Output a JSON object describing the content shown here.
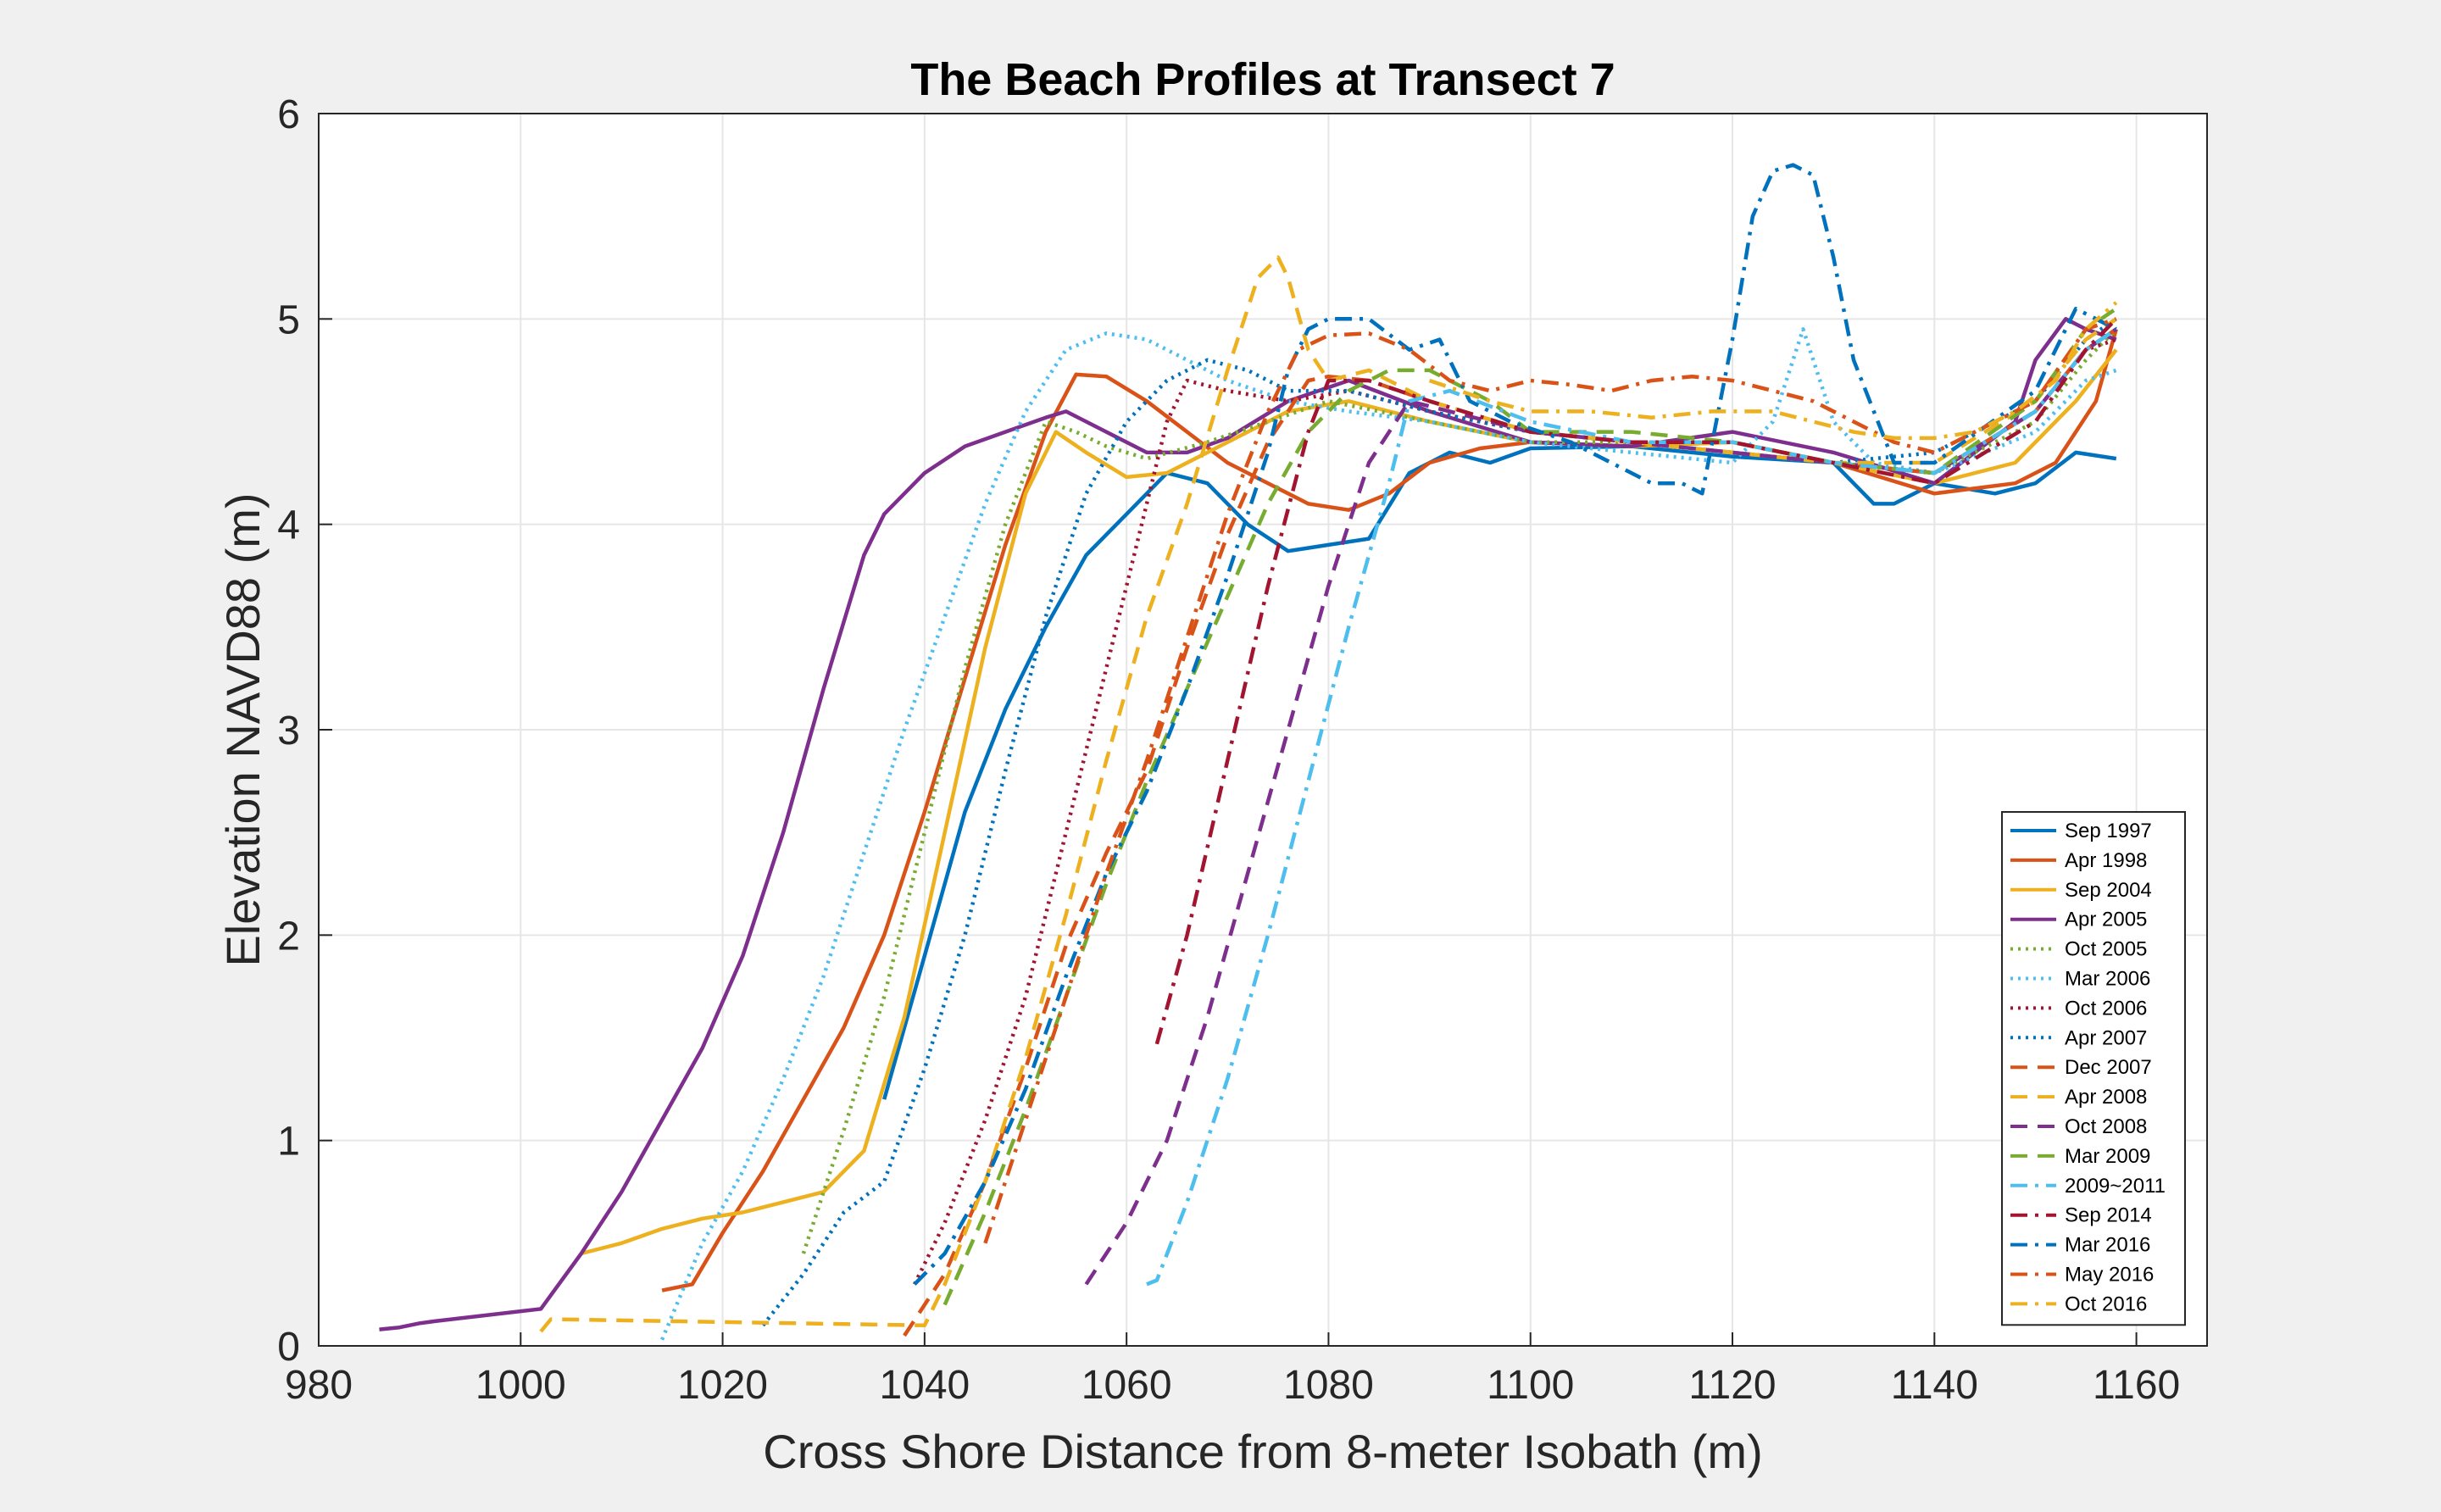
{
  "chart_data": {
    "type": "line",
    "title": "The Beach Profiles at Transect 7",
    "xlabel": "Cross Shore Distance from 8-meter Isobath (m)",
    "ylabel": "Elevation NAVD88 (m)",
    "xlim": [
      980,
      1167
    ],
    "ylim": [
      0,
      6
    ],
    "xticks": [
      "980",
      "1000",
      "1020",
      "1040",
      "1060",
      "1080",
      "1100",
      "1120",
      "1140",
      "1160"
    ],
    "yticks": [
      "0",
      "1",
      "2",
      "3",
      "4",
      "5",
      "6"
    ],
    "grid": true,
    "legend_position": "bottom-right",
    "series": [
      {
        "name": "Sep 1997",
        "color": "#0072BD",
        "dash": "solid",
        "x": [
          1036,
          1040,
          1044,
          1048,
          1052,
          1056,
          1060,
          1064,
          1068,
          1072,
          1076,
          1080,
          1084,
          1088,
          1092,
          1096,
          1100,
          1110,
          1120,
          1130,
          1134,
          1136,
          1140,
          1146,
          1150,
          1154,
          1158
        ],
        "y": [
          1.2,
          1.9,
          2.6,
          3.1,
          3.5,
          3.85,
          4.05,
          4.25,
          4.2,
          4.0,
          3.87,
          3.9,
          3.93,
          4.25,
          4.35,
          4.3,
          4.37,
          4.38,
          4.33,
          4.3,
          4.1,
          4.1,
          4.2,
          4.15,
          4.2,
          4.35,
          4.32
        ]
      },
      {
        "name": "Apr 1998",
        "color": "#D95319",
        "dash": "solid",
        "x": [
          1014,
          1017,
          1020,
          1024,
          1028,
          1032,
          1036,
          1040,
          1044,
          1048,
          1052,
          1055,
          1058,
          1062,
          1066,
          1070,
          1074,
          1078,
          1082,
          1086,
          1090,
          1095,
          1100,
          1110,
          1120,
          1130,
          1140,
          1148,
          1152,
          1156,
          1158
        ],
        "y": [
          0.27,
          0.3,
          0.55,
          0.85,
          1.2,
          1.55,
          2.0,
          2.6,
          3.25,
          3.9,
          4.45,
          4.73,
          4.72,
          4.6,
          4.45,
          4.3,
          4.2,
          4.1,
          4.07,
          4.15,
          4.3,
          4.37,
          4.4,
          4.38,
          4.4,
          4.3,
          4.15,
          4.2,
          4.3,
          4.6,
          4.95
        ]
      },
      {
        "name": "Sep 2004",
        "color": "#EDB120",
        "dash": "solid",
        "x": [
          1006,
          1010,
          1014,
          1018,
          1022,
          1026,
          1030,
          1034,
          1038,
          1042,
          1046,
          1050,
          1053,
          1056,
          1060,
          1064,
          1070,
          1076,
          1082,
          1090,
          1100,
          1110,
          1120,
          1130,
          1140,
          1148,
          1154,
          1158
        ],
        "y": [
          0.45,
          0.5,
          0.57,
          0.62,
          0.65,
          0.7,
          0.75,
          0.95,
          1.6,
          2.5,
          3.4,
          4.15,
          4.45,
          4.35,
          4.23,
          4.25,
          4.4,
          4.55,
          4.6,
          4.5,
          4.4,
          4.38,
          4.4,
          4.3,
          4.2,
          4.3,
          4.6,
          4.85
        ]
      },
      {
        "name": "Apr 2005",
        "color": "#7E2F8E",
        "dash": "solid",
        "x": [
          986,
          988,
          990,
          991.5,
          1002,
          1006,
          1010,
          1014,
          1018,
          1022,
          1026,
          1030,
          1034,
          1036,
          1040,
          1044,
          1048,
          1052,
          1054,
          1058,
          1062,
          1066,
          1070,
          1076,
          1082,
          1090,
          1100,
          1110,
          1120,
          1130,
          1140,
          1148,
          1150,
          1153,
          1155,
          1158
        ],
        "y": [
          0.08,
          0.09,
          0.11,
          0.12,
          0.18,
          0.45,
          0.75,
          1.1,
          1.45,
          1.9,
          2.5,
          3.2,
          3.85,
          4.05,
          4.25,
          4.38,
          4.45,
          4.52,
          4.55,
          4.45,
          4.35,
          4.35,
          4.42,
          4.6,
          4.7,
          4.55,
          4.4,
          4.38,
          4.45,
          4.35,
          4.2,
          4.5,
          4.8,
          5.0,
          4.95,
          4.9
        ]
      },
      {
        "name": "Oct 2005",
        "color": "#77AC30",
        "dash": "dotted",
        "x": [
          1028,
          1032,
          1036,
          1040,
          1044,
          1048,
          1052,
          1055,
          1058,
          1062,
          1068,
          1074,
          1080,
          1090,
          1100,
          1110,
          1120,
          1130,
          1140,
          1150,
          1155,
          1158
        ],
        "y": [
          0.45,
          1.05,
          1.7,
          2.5,
          3.3,
          4.0,
          4.5,
          4.45,
          4.38,
          4.32,
          4.4,
          4.5,
          4.6,
          4.5,
          4.4,
          4.4,
          4.35,
          4.3,
          4.25,
          4.5,
          4.8,
          4.95
        ]
      },
      {
        "name": "Mar 2006",
        "color": "#4DBEEE",
        "dash": "dotted",
        "x": [
          1014,
          1018,
          1022,
          1026,
          1030,
          1034,
          1038,
          1042,
          1046,
          1050,
          1054,
          1058,
          1062,
          1066,
          1070,
          1076,
          1082,
          1090,
          1100,
          1110,
          1120,
          1124,
          1127,
          1130,
          1134,
          1140,
          1150,
          1155,
          1158
        ],
        "y": [
          0.03,
          0.5,
          0.85,
          1.3,
          1.8,
          2.4,
          3.0,
          3.55,
          4.1,
          4.55,
          4.85,
          4.93,
          4.9,
          4.8,
          4.7,
          4.6,
          4.55,
          4.5,
          4.4,
          4.35,
          4.3,
          4.5,
          4.95,
          4.5,
          4.3,
          4.25,
          4.45,
          4.7,
          4.75
        ]
      },
      {
        "name": "Oct 2006",
        "color": "#A2142F",
        "dash": "dotted",
        "x": [
          1039,
          1042,
          1046,
          1050,
          1054,
          1058,
          1062,
          1064,
          1066,
          1070,
          1076,
          1082,
          1090,
          1100,
          1110,
          1120,
          1130,
          1140,
          1150,
          1155,
          1158
        ],
        "y": [
          0.3,
          0.6,
          1.1,
          1.7,
          2.5,
          3.3,
          4.1,
          4.5,
          4.7,
          4.65,
          4.6,
          4.65,
          4.55,
          4.45,
          4.4,
          4.35,
          4.3,
          4.25,
          4.55,
          4.85,
          4.9
        ]
      },
      {
        "name": "Apr 2007",
        "color": "#0072BD",
        "dash": "dotted",
        "x": [
          1024,
          1028,
          1032,
          1036,
          1040,
          1044,
          1048,
          1052,
          1056,
          1060,
          1064,
          1068,
          1072,
          1076,
          1082,
          1090,
          1100,
          1110,
          1120,
          1130,
          1140,
          1150,
          1155,
          1158
        ],
        "y": [
          0.1,
          0.35,
          0.65,
          0.8,
          1.35,
          2.0,
          2.8,
          3.55,
          4.15,
          4.5,
          4.7,
          4.8,
          4.75,
          4.65,
          4.65,
          4.55,
          4.45,
          4.4,
          4.4,
          4.3,
          4.35,
          4.6,
          4.9,
          5.0
        ]
      },
      {
        "name": "Dec 2007",
        "color": "#D95319",
        "dash": "dashed",
        "x": [
          1038,
          1042,
          1046,
          1050,
          1054,
          1058,
          1062,
          1066,
          1070,
          1074,
          1078,
          1080,
          1084,
          1090,
          1100,
          1110,
          1120,
          1130,
          1140,
          1150,
          1155,
          1158
        ],
        "y": [
          0.05,
          0.35,
          0.8,
          1.35,
          1.95,
          2.4,
          2.8,
          3.4,
          3.95,
          4.4,
          4.7,
          4.72,
          4.7,
          4.6,
          4.45,
          4.4,
          4.35,
          4.3,
          4.25,
          4.55,
          4.85,
          4.95
        ]
      },
      {
        "name": "Apr 2008",
        "color": "#EDB120",
        "dash": "dashed",
        "x": [
          1002,
          1003,
          1040,
          1042,
          1046,
          1050,
          1054,
          1058,
          1062,
          1066,
          1070,
          1073,
          1075,
          1076,
          1078,
          1080,
          1084,
          1090,
          1100,
          1110,
          1120,
          1130,
          1140,
          1150,
          1155,
          1158
        ],
        "y": [
          0.07,
          0.13,
          0.1,
          0.3,
          0.8,
          1.4,
          2.1,
          2.85,
          3.55,
          4.1,
          4.75,
          5.2,
          5.3,
          5.2,
          4.85,
          4.7,
          4.75,
          4.6,
          4.45,
          4.4,
          4.35,
          4.3,
          4.3,
          4.6,
          4.9,
          5.0
        ]
      },
      {
        "name": "Oct 2008",
        "color": "#7E2F8E",
        "dash": "dashed",
        "x": [
          1056,
          1060,
          1064,
          1068,
          1072,
          1076,
          1080,
          1084,
          1088,
          1092,
          1100,
          1110,
          1120,
          1130,
          1140,
          1150,
          1155,
          1158
        ],
        "y": [
          0.3,
          0.6,
          1.0,
          1.6,
          2.3,
          3.0,
          3.7,
          4.3,
          4.6,
          4.55,
          4.45,
          4.4,
          4.35,
          4.3,
          4.25,
          4.55,
          4.85,
          4.95
        ]
      },
      {
        "name": "Mar 2009",
        "color": "#77AC30",
        "dash": "dashed",
        "x": [
          1042,
          1046,
          1050,
          1054,
          1058,
          1062,
          1066,
          1070,
          1074,
          1078,
          1082,
          1086,
          1090,
          1096,
          1100,
          1110,
          1120,
          1130,
          1140,
          1150,
          1155,
          1158
        ],
        "y": [
          0.2,
          0.65,
          1.15,
          1.7,
          2.25,
          2.75,
          3.2,
          3.65,
          4.1,
          4.45,
          4.65,
          4.75,
          4.75,
          4.6,
          4.45,
          4.45,
          4.4,
          4.3,
          4.25,
          4.6,
          4.95,
          5.05
        ]
      },
      {
        "name": "2009~2011",
        "color": "#4DBEEE",
        "dash": "dashdot",
        "x": [
          1062,
          1063,
          1066,
          1070,
          1074,
          1078,
          1082,
          1086,
          1088,
          1092,
          1100,
          1110,
          1120,
          1130,
          1140,
          1150,
          1155,
          1158
        ],
        "y": [
          0.3,
          0.32,
          0.7,
          1.3,
          2.0,
          2.75,
          3.5,
          4.2,
          4.6,
          4.65,
          4.5,
          4.4,
          4.4,
          4.3,
          4.25,
          4.55,
          4.85,
          4.95
        ]
      },
      {
        "name": "Sep 2014",
        "color": "#A2142F",
        "dash": "dashdot",
        "x": [
          1063,
          1066,
          1070,
          1074,
          1078,
          1080,
          1084,
          1090,
          1100,
          1110,
          1120,
          1130,
          1140,
          1150,
          1155,
          1158
        ],
        "y": [
          1.47,
          2.0,
          2.85,
          3.7,
          4.45,
          4.7,
          4.7,
          4.6,
          4.45,
          4.4,
          4.4,
          4.3,
          4.2,
          4.5,
          4.85,
          5.0
        ]
      },
      {
        "name": "Mar 2016",
        "color": "#0072BD",
        "dash": "dashdot",
        "x": [
          1039,
          1042,
          1046,
          1050,
          1054,
          1058,
          1062,
          1066,
          1070,
          1074,
          1076,
          1078,
          1080,
          1084,
          1088,
          1091,
          1094,
          1098,
          1104,
          1108,
          1112,
          1115,
          1117,
          1120,
          1122,
          1124,
          1126,
          1128,
          1130,
          1132,
          1136,
          1140,
          1150,
          1154,
          1158
        ],
        "y": [
          0.3,
          0.45,
          0.8,
          1.25,
          1.8,
          2.3,
          2.7,
          3.2,
          3.75,
          4.35,
          4.75,
          4.95,
          5.0,
          5.0,
          4.85,
          4.9,
          4.6,
          4.5,
          4.4,
          4.3,
          4.2,
          4.2,
          4.15,
          4.9,
          5.5,
          5.72,
          5.75,
          5.7,
          5.3,
          4.8,
          4.3,
          4.3,
          4.65,
          5.05,
          4.95
        ]
      },
      {
        "name": "May 2016",
        "color": "#D95319",
        "dash": "dashdot",
        "x": [
          1046,
          1050,
          1054,
          1058,
          1062,
          1066,
          1070,
          1074,
          1077,
          1080,
          1084,
          1088,
          1092,
          1096,
          1100,
          1104,
          1108,
          1112,
          1116,
          1120,
          1124,
          1128,
          1132,
          1136,
          1140,
          1150,
          1155,
          1158
        ],
        "y": [
          0.5,
          1.1,
          1.7,
          2.3,
          2.85,
          3.45,
          4.05,
          4.55,
          4.85,
          4.92,
          4.93,
          4.85,
          4.7,
          4.65,
          4.7,
          4.68,
          4.65,
          4.7,
          4.72,
          4.7,
          4.65,
          4.6,
          4.5,
          4.4,
          4.35,
          4.6,
          4.95,
          5.0
        ]
      },
      {
        "name": "Oct 2016",
        "color": "#EDB120",
        "dash": "dashdot",
        "x": [
          1090,
          1096,
          1100,
          1106,
          1112,
          1118,
          1124,
          1128,
          1132,
          1136,
          1140,
          1144,
          1148,
          1152,
          1155,
          1158
        ],
        "y": [
          4.7,
          4.6,
          4.55,
          4.55,
          4.52,
          4.55,
          4.55,
          4.5,
          4.45,
          4.42,
          4.42,
          4.45,
          4.55,
          4.7,
          4.95,
          5.08
        ]
      }
    ]
  }
}
